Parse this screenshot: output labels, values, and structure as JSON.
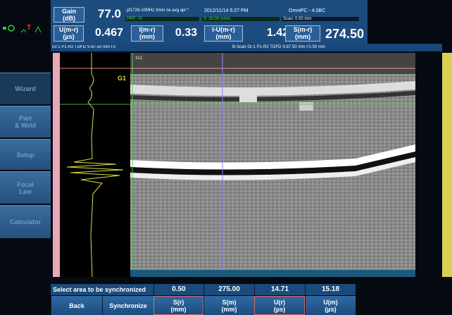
{
  "header": {
    "gain_label": "Gain\n(dB)",
    "gain_value": "77.0",
    "probe": "pf1726-10MHz 3mm ne avg apl *",
    "datetime": "2012/11/14 5:27 PM",
    "app": "OmniPC - 4.0BC",
    "prf": "PRF: 70",
    "velocity": "V: 35.00 mm/s",
    "scan": "Scan: 0.00 mm"
  },
  "readings": [
    {
      "label": "U(m-r)\n(µs)",
      "value": "0.467"
    },
    {
      "label": "I(m-r)\n(mm)",
      "value": "0.33"
    },
    {
      "label": "I-U(m-r)\n(mm)",
      "value": "1.42"
    },
    {
      "label": "S(m-r)\n(mm)",
      "value": "274.50"
    }
  ],
  "view_titles": {
    "ascan": "Gr:1 P1-R2 TOFD S:87.50 mm I:0",
    "bscan": "B-Scan Gr:1 P1-R2 TOFD S:87.50 mm I:0.50 mm"
  },
  "gate": "G1",
  "cursor_label": "312",
  "menu": [
    "Wizard",
    "Part\n& Weld",
    "Setup",
    "Focal\nLaw",
    "Calculator"
  ],
  "footer": {
    "prompt": "Select area to be synchronized",
    "values": [
      "0.50",
      "275.00",
      "14.71",
      "15.18"
    ],
    "buttons": [
      "Back",
      "Synchronize",
      "S(r)\n(mm)",
      "S(m)\n(mm)",
      "U(r)\n(µs)",
      "U(m)\n(µs)"
    ]
  }
}
